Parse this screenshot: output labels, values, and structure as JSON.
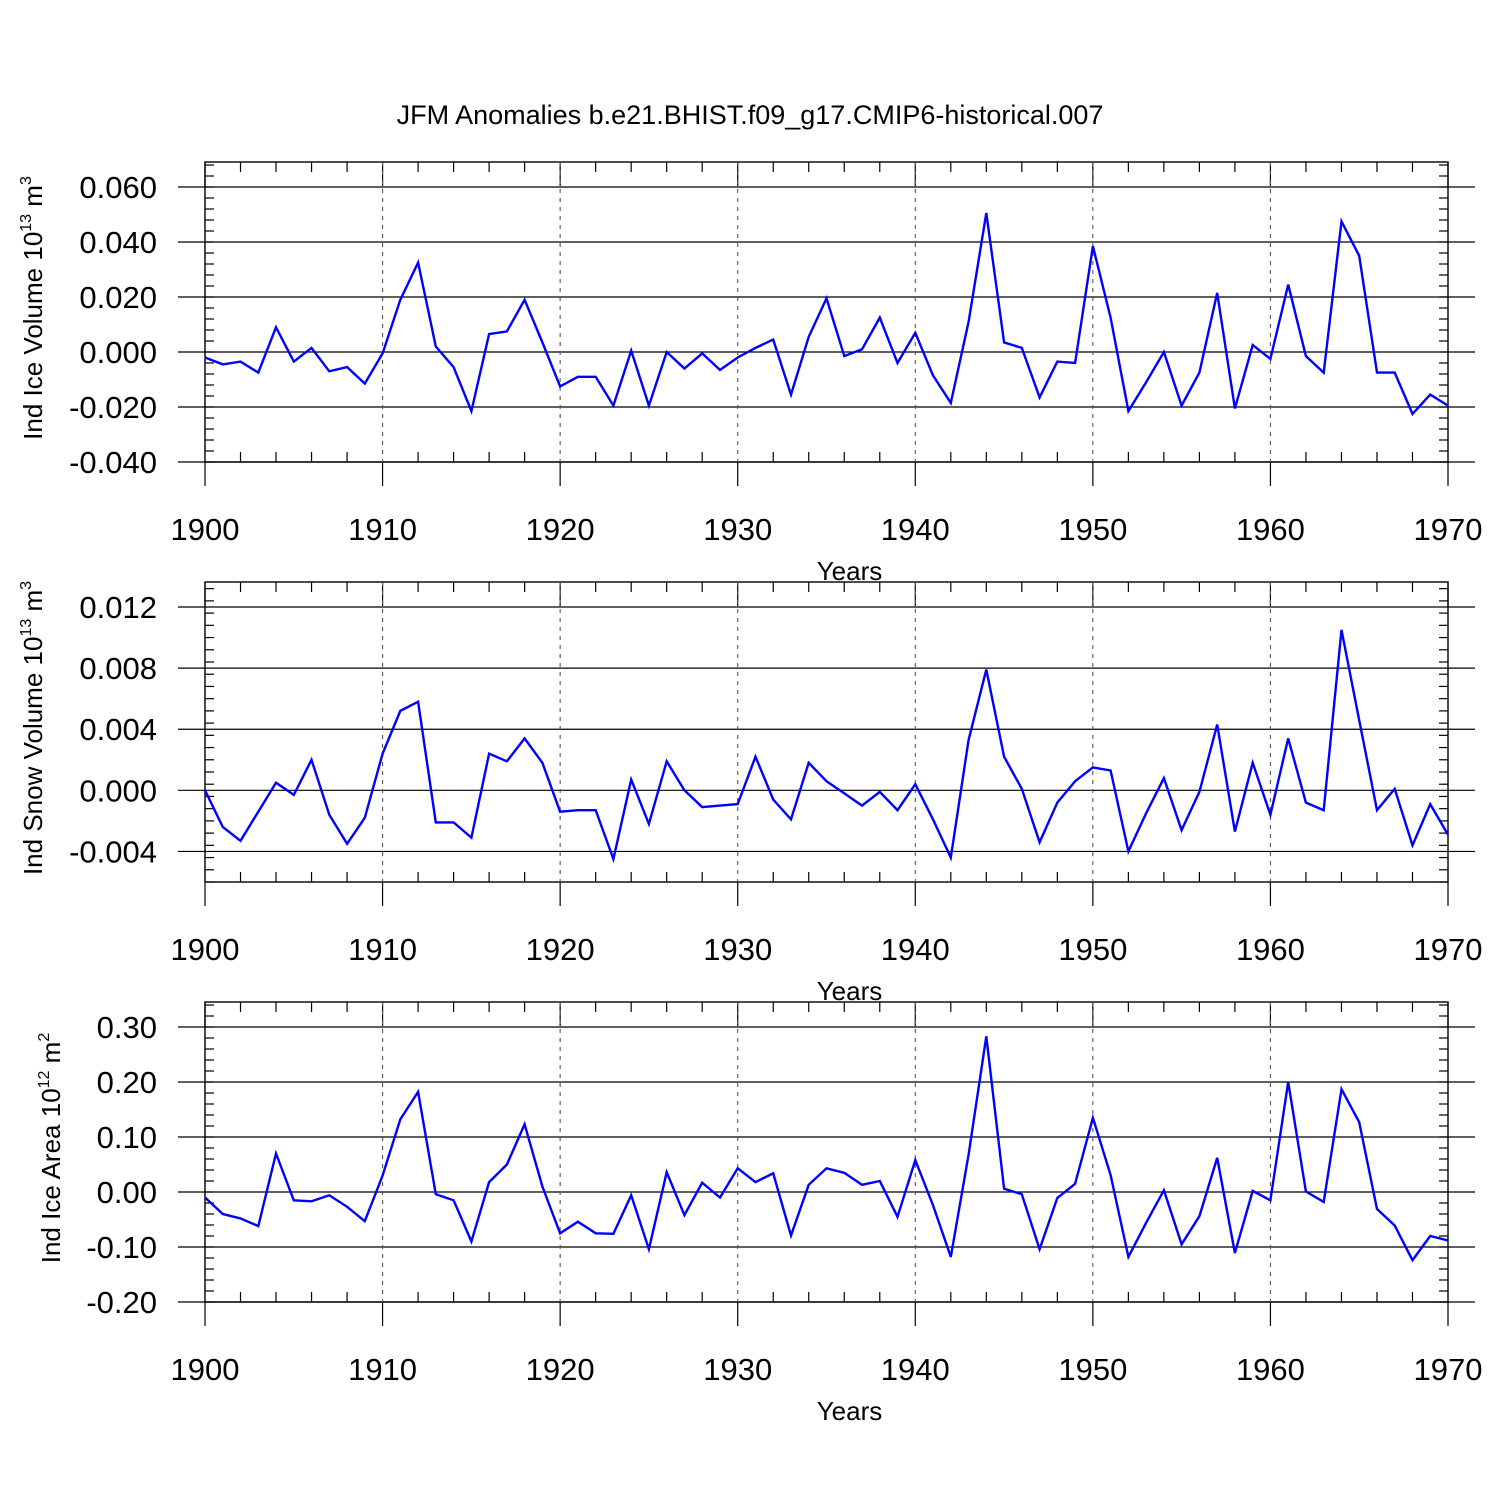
{
  "title": "JFM Anomalies b.e21.BHIST.f09_g17.CMIP6-historical.007",
  "chart_data": [
    {
      "type": "line",
      "ylabel_main": "Ind Ice Volume 10",
      "ylabel_exp": "13",
      "ylabel_unit": " m",
      "ylabel_unit_exp": "3",
      "xlabel": "Years",
      "xlim": [
        1900,
        1970
      ],
      "ylim": [
        -0.04,
        0.066
      ],
      "xticks": [
        1900,
        1910,
        1920,
        1930,
        1940,
        1950,
        1960,
        1970
      ],
      "xtick_labels": [
        "1900",
        "1910",
        "1920",
        "1930",
        "1940",
        "1950",
        "1960",
        "1970"
      ],
      "yticks": [
        -0.04,
        -0.02,
        0.0,
        0.02,
        0.04,
        0.06
      ],
      "ytick_labels": [
        "-0.040",
        "-0.020",
        "0.000",
        "0.020",
        "0.040",
        "0.060"
      ],
      "series_color": "#0000ff",
      "x": [
        1900,
        1901,
        1902,
        1903,
        1904,
        1905,
        1906,
        1907,
        1908,
        1909,
        1910,
        1911,
        1912,
        1913,
        1914,
        1915,
        1916,
        1917,
        1918,
        1919,
        1920,
        1921,
        1922,
        1923,
        1924,
        1925,
        1926,
        1927,
        1928,
        1929,
        1930,
        1931,
        1932,
        1933,
        1934,
        1935,
        1936,
        1937,
        1938,
        1939,
        1940,
        1941,
        1942,
        1943,
        1944,
        1945,
        1946,
        1947,
        1948,
        1949,
        1950,
        1951,
        1952,
        1953,
        1954,
        1955,
        1956,
        1957,
        1958,
        1959,
        1960,
        1961,
        1962,
        1963,
        1964,
        1965,
        1966,
        1967,
        1968,
        1969,
        1970
      ],
      "values": [
        -0.002,
        -0.0045,
        -0.0035,
        -0.0075,
        0.009,
        -0.0035,
        0.0015,
        -0.007,
        -0.0055,
        -0.0115,
        -0.0005,
        0.019,
        0.0325,
        0.002,
        -0.0055,
        -0.0215,
        0.0065,
        0.0075,
        0.019,
        0.0035,
        -0.0125,
        -0.009,
        -0.009,
        -0.0195,
        0.0005,
        -0.0195,
        0.0,
        -0.006,
        -0.0005,
        -0.0065,
        -0.002,
        0.0015,
        0.0045,
        -0.0155,
        0.0055,
        0.0195,
        -0.0015,
        0.001,
        0.0125,
        -0.004,
        0.007,
        -0.0085,
        -0.0185,
        0.011,
        0.0505,
        0.0035,
        0.0015,
        -0.0165,
        -0.0035,
        -0.004,
        0.0385,
        0.0125,
        -0.0215,
        -0.011,
        0.0,
        -0.0195,
        -0.0075,
        0.0215,
        -0.0205,
        0.0025,
        -0.0025,
        0.0245,
        -0.0015,
        -0.0075,
        0.0475,
        0.035,
        -0.0075,
        -0.0075,
        -0.0225,
        -0.0155,
        -0.0195
      ]
    },
    {
      "type": "line",
      "ylabel_main": "Ind Snow Volume 10",
      "ylabel_exp": "13",
      "ylabel_unit": " m",
      "ylabel_unit_exp": "3",
      "xlabel": "Years",
      "xlim": [
        1900,
        1970
      ],
      "ylim": [
        -0.006,
        0.0134
      ],
      "xticks": [
        1900,
        1910,
        1920,
        1930,
        1940,
        1950,
        1960,
        1970
      ],
      "xtick_labels": [
        "1900",
        "1910",
        "1920",
        "1930",
        "1940",
        "1950",
        "1960",
        "1970"
      ],
      "yticks": [
        -0.004,
        0.0,
        0.004,
        0.008,
        0.012
      ],
      "ytick_labels": [
        "-0.004",
        "0.000",
        "0.004",
        "0.008",
        "0.012"
      ],
      "series_color": "#0000ff",
      "x": [
        1900,
        1901,
        1902,
        1903,
        1904,
        1905,
        1906,
        1907,
        1908,
        1909,
        1910,
        1911,
        1912,
        1913,
        1914,
        1915,
        1916,
        1917,
        1918,
        1919,
        1920,
        1921,
        1922,
        1923,
        1924,
        1925,
        1926,
        1927,
        1928,
        1929,
        1930,
        1931,
        1932,
        1933,
        1934,
        1935,
        1936,
        1937,
        1938,
        1939,
        1940,
        1941,
        1942,
        1943,
        1944,
        1945,
        1946,
        1947,
        1948,
        1949,
        1950,
        1951,
        1952,
        1953,
        1954,
        1955,
        1956,
        1957,
        1958,
        1959,
        1960,
        1961,
        1962,
        1963,
        1964,
        1965,
        1966,
        1967,
        1968,
        1969,
        1970
      ],
      "values": [
        0.0,
        -0.0024,
        -0.0033,
        -0.0014,
        0.0005,
        -0.0003,
        0.002,
        -0.0016,
        -0.0035,
        -0.0018,
        0.0024,
        0.0052,
        0.0058,
        -0.0021,
        -0.0021,
        -0.0031,
        0.0024,
        0.0019,
        0.0034,
        0.0018,
        -0.0014,
        -0.0013,
        -0.0013,
        -0.0045,
        0.0007,
        -0.0022,
        0.0019,
        0.0,
        -0.0011,
        -0.001,
        -0.0009,
        0.0022,
        -0.0006,
        -0.0019,
        0.0018,
        0.0006,
        -0.0002,
        -0.001,
        -0.0001,
        -0.0013,
        0.0004,
        -0.0019,
        -0.0044,
        0.0033,
        0.0079,
        0.0022,
        0.0001,
        -0.0034,
        -0.0008,
        0.0006,
        0.0015,
        0.0013,
        -0.004,
        -0.0015,
        0.0008,
        -0.0026,
        -0.0001,
        0.0043,
        -0.0027,
        0.0018,
        -0.0016,
        0.0034,
        -0.0008,
        -0.0013,
        0.0105,
        0.0046,
        -0.0013,
        0.0001,
        -0.0036,
        -0.0009,
        -0.0029
      ]
    },
    {
      "type": "line",
      "ylabel_main": "Ind Ice Area 10",
      "ylabel_exp": "12",
      "ylabel_unit": " m",
      "ylabel_unit_exp": "2",
      "xlabel": "Years",
      "xlim": [
        1900,
        1970
      ],
      "ylim": [
        -0.2,
        0.345
      ],
      "xticks": [
        1900,
        1910,
        1920,
        1930,
        1940,
        1950,
        1960,
        1970
      ],
      "xtick_labels": [
        "1900",
        "1910",
        "1920",
        "1930",
        "1940",
        "1950",
        "1960",
        "1970"
      ],
      "yticks": [
        -0.2,
        -0.1,
        0.0,
        0.1,
        0.2,
        0.3
      ],
      "ytick_labels": [
        "-0.20",
        "-0.10",
        "0.00",
        "0.10",
        "0.20",
        "0.30"
      ],
      "series_color": "#0000ff",
      "x": [
        1900,
        1901,
        1902,
        1903,
        1904,
        1905,
        1906,
        1907,
        1908,
        1909,
        1910,
        1911,
        1912,
        1913,
        1914,
        1915,
        1916,
        1917,
        1918,
        1919,
        1920,
        1921,
        1922,
        1923,
        1924,
        1925,
        1926,
        1927,
        1928,
        1929,
        1930,
        1931,
        1932,
        1933,
        1934,
        1935,
        1936,
        1937,
        1938,
        1939,
        1940,
        1941,
        1942,
        1943,
        1944,
        1945,
        1946,
        1947,
        1948,
        1949,
        1950,
        1951,
        1952,
        1953,
        1954,
        1955,
        1956,
        1957,
        1958,
        1959,
        1960,
        1961,
        1962,
        1963,
        1964,
        1965,
        1966,
        1967,
        1968,
        1969,
        1970
      ],
      "values": [
        -0.01,
        -0.04,
        -0.048,
        -0.062,
        0.07,
        -0.015,
        -0.017,
        -0.006,
        -0.027,
        -0.053,
        0.03,
        0.132,
        0.182,
        -0.004,
        -0.015,
        -0.09,
        0.018,
        0.05,
        0.123,
        0.01,
        -0.075,
        -0.054,
        -0.075,
        -0.076,
        -0.006,
        -0.104,
        0.036,
        -0.042,
        0.017,
        -0.01,
        0.043,
        0.018,
        0.034,
        -0.079,
        0.013,
        0.043,
        0.035,
        0.013,
        0.02,
        -0.045,
        0.058,
        -0.024,
        -0.118,
        0.068,
        0.283,
        0.006,
        -0.004,
        -0.104,
        -0.011,
        0.015,
        0.135,
        0.031,
        -0.118,
        -0.056,
        0.003,
        -0.095,
        -0.044,
        0.062,
        -0.111,
        0.002,
        -0.015,
        0.2,
        0.001,
        -0.018,
        0.187,
        0.127,
        -0.031,
        -0.061,
        -0.124,
        -0.08,
        -0.088
      ]
    }
  ]
}
